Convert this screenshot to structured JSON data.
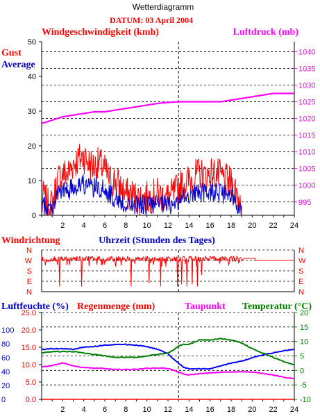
{
  "page": {
    "title": "Wetterdiagramm",
    "date_label": "DATUM: 03 April 2004",
    "x_axis_title": "Uhrzeit (Stunden des Tages)"
  },
  "colors": {
    "gust": "#ff0000",
    "average": "#0000cc",
    "pressure": "#ff00ff",
    "humidity": "#0000ff",
    "rain": "#ff0000",
    "dewpoint": "#ff00ff",
    "temperature": "#008000",
    "direction": "#ff0000",
    "axis": "#000000"
  },
  "chart_data": [
    {
      "id": "wind",
      "type": "line",
      "title": "Windgeschwindigkeit (kmh)",
      "title_right": "Luftdruck (mb)",
      "legend": [
        "Gust",
        "Average"
      ],
      "x_ticks": [
        2,
        4,
        6,
        8,
        10,
        12,
        14,
        16,
        18,
        20,
        22,
        24
      ],
      "xlim": [
        0,
        24
      ],
      "ylim": [
        0,
        50
      ],
      "y_ticks": [
        0,
        10,
        20,
        30,
        40,
        50
      ],
      "y2lim": [
        991,
        1043
      ],
      "y2_ticks": [
        995,
        1000,
        1005,
        1010,
        1015,
        1020,
        1025,
        1030,
        1035,
        1040
      ],
      "grid": "dashed",
      "vline_at": 13,
      "series": [
        {
          "name": "Gust",
          "axis": "left",
          "style": "noisy",
          "seed": 7,
          "amp": 5,
          "x": [
            0,
            0.2,
            0.5,
            1,
            1.5,
            2,
            2.5,
            3,
            3.5,
            4,
            4.5,
            5,
            5.5,
            6,
            6.5,
            7,
            7.5,
            8,
            8.5,
            9,
            10,
            11,
            12,
            12.5,
            13,
            13.5,
            14,
            14.5,
            15,
            15.5,
            16,
            16.5,
            17,
            17.5,
            18,
            18.5,
            19
          ],
          "y": [
            2,
            6,
            3,
            3,
            10,
            12,
            12,
            15,
            16,
            17,
            15,
            14,
            15,
            13,
            10,
            10,
            8,
            6,
            6,
            5,
            5,
            6,
            5,
            6,
            8,
            9,
            10,
            11,
            12,
            11,
            12,
            12,
            11,
            10,
            9,
            7,
            3
          ]
        },
        {
          "name": "Average",
          "axis": "left",
          "style": "noisy",
          "seed": 19,
          "amp": 3,
          "x": [
            0,
            0.2,
            0.5,
            1,
            1.5,
            2,
            2.5,
            3,
            3.5,
            4,
            4.5,
            5,
            5.5,
            6,
            6.5,
            7,
            7.5,
            8,
            8.5,
            9,
            10,
            11,
            12,
            12.5,
            13,
            13.5,
            14,
            14.5,
            15,
            15.5,
            16,
            16.5,
            17,
            17.5,
            18,
            18.5,
            19
          ],
          "y": [
            1,
            3,
            2,
            2,
            6,
            7,
            7,
            8,
            9,
            9,
            8,
            8,
            8,
            7,
            6,
            5,
            4,
            3,
            3,
            3,
            3,
            3,
            3,
            3,
            4,
            5,
            6,
            6,
            7,
            6,
            7,
            7,
            6,
            6,
            5,
            4,
            1
          ]
        },
        {
          "name": "Luftdruck",
          "axis": "right",
          "style": "smooth",
          "x": [
            0,
            1,
            2,
            3,
            4,
            5,
            6,
            7,
            8,
            9,
            10,
            11,
            12,
            13,
            14,
            15,
            16,
            17,
            18,
            19,
            20,
            21,
            22,
            23,
            24
          ],
          "y": [
            1018.5,
            1019.5,
            1020.5,
            1021,
            1021.5,
            1022,
            1022,
            1022.5,
            1023,
            1023.5,
            1024,
            1024.5,
            1024.8,
            1025,
            1025,
            1025,
            1025,
            1025,
            1025.5,
            1026,
            1026.5,
            1027,
            1027.5,
            1027.5,
            1027.5
          ]
        }
      ]
    },
    {
      "id": "direction",
      "type": "line",
      "title": "Windrichtung",
      "y_labels": [
        "N",
        "W",
        "S",
        "E",
        "N"
      ],
      "xlim": [
        0,
        24
      ],
      "ylim": [
        0,
        4
      ],
      "grid": "dashed",
      "vline_at": 13,
      "series": [
        {
          "name": "Windrichtung",
          "style": "direction",
          "seed": 31,
          "active_until": 19,
          "flat_after": 3.2,
          "spikes": [
            [
              1.7,
              0.5
            ],
            [
              3.8,
              0.5
            ],
            [
              6.0,
              2.6
            ],
            [
              8.5,
              0.5
            ],
            [
              10.2,
              0.8
            ],
            [
              10.6,
              2.6
            ],
            [
              11.3,
              0.5
            ],
            [
              11.8,
              2.4
            ],
            [
              12.9,
              0.5
            ],
            [
              13.3,
              0.7
            ],
            [
              13.8,
              0.5
            ],
            [
              14.3,
              0.7
            ],
            [
              14.8,
              0.5
            ],
            [
              15.2,
              1.6
            ]
          ]
        }
      ]
    },
    {
      "id": "humidity_temp",
      "type": "line",
      "titles": [
        "Luftfeuchte (%)",
        "Regenmenge (mm)",
        "Taupunkt",
        "Temperatur (°C)"
      ],
      "x_ticks": [
        2,
        4,
        6,
        8,
        10,
        12,
        14,
        16,
        18,
        20,
        22,
        24
      ],
      "xlim": [
        0,
        24
      ],
      "ylim": [
        0,
        125
      ],
      "y_ticks_humidity": [
        0,
        20,
        40,
        60,
        80,
        100
      ],
      "y_ticks_rain": [
        "0.0",
        "5.0",
        "10.0",
        "15.0",
        "20.0",
        "25.0"
      ],
      "y2lim": [
        -10,
        20
      ],
      "y2_ticks": [
        -10,
        -5,
        0,
        5,
        10,
        15,
        20
      ],
      "grid": "dashed",
      "vline_at": 13,
      "series": [
        {
          "name": "Luftfeuchte",
          "axis": "left",
          "style": "smooth",
          "x": [
            0,
            1,
            2,
            3,
            4,
            5,
            6,
            7,
            8,
            9,
            10,
            11,
            12,
            12.5,
            13,
            13.5,
            14,
            15,
            16,
            17,
            18,
            19,
            20,
            21,
            22,
            23,
            24
          ],
          "y": [
            72,
            73,
            73,
            72,
            75,
            76,
            78,
            79,
            79,
            78,
            76,
            72,
            66,
            58,
            52,
            46,
            44,
            44,
            44,
            48,
            52,
            55,
            60,
            64,
            67,
            70,
            72
          ]
        },
        {
          "name": "Taupunkt",
          "axis": "right",
          "style": "smooth",
          "x": [
            0,
            1,
            2,
            3,
            4,
            5,
            6,
            7,
            8,
            9,
            10,
            11,
            12,
            13,
            13.5,
            14,
            15,
            16,
            17,
            18,
            19,
            20,
            21,
            22,
            23,
            24
          ],
          "y": [
            1.3,
            1.6,
            2.6,
            1.6,
            1.0,
            0.8,
            0.6,
            0.3,
            0.3,
            0.4,
            0.7,
            0.8,
            0.7,
            -0.6,
            -1.3,
            -1.6,
            -1.1,
            -0.9,
            -0.6,
            -0.6,
            -0.4,
            -0.6,
            -1.0,
            -1.6,
            -2.4,
            -2.8
          ]
        },
        {
          "name": "Temperatur",
          "axis": "right",
          "style": "smooth",
          "x": [
            0,
            1,
            2,
            3,
            4,
            5,
            6,
            7,
            8,
            9,
            10,
            11,
            12,
            12.5,
            13,
            13.5,
            14,
            15,
            16,
            17,
            18,
            19,
            20,
            21,
            22,
            23,
            24
          ],
          "y": [
            6,
            6.5,
            6.5,
            6.5,
            6,
            5.5,
            5,
            4.5,
            4.5,
            4.5,
            5,
            5.5,
            6,
            7,
            8.5,
            9,
            9,
            10.5,
            10.5,
            11,
            10.5,
            9.5,
            7.5,
            6,
            4.5,
            3,
            2
          ]
        },
        {
          "name": "Regenmenge",
          "axis": "left",
          "style": "line",
          "x": [
            0,
            24
          ],
          "y": [
            0,
            0
          ]
        }
      ]
    }
  ]
}
